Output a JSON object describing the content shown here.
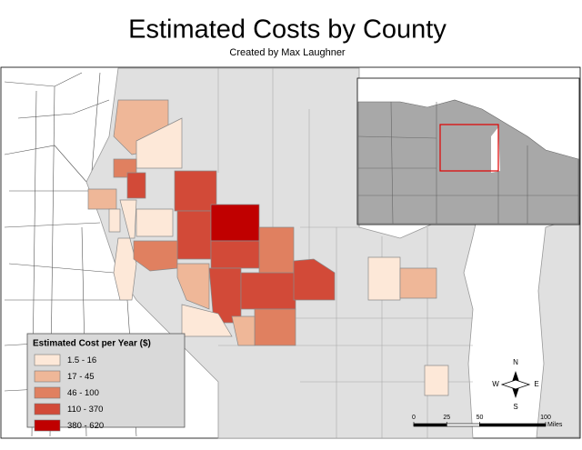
{
  "title": "Estimated Costs by County",
  "subtitle": "Created by Max Laughner",
  "legend": {
    "title": "Estimated Cost per Year ($)",
    "items": [
      {
        "label": "1.5 - 16",
        "color": "#fde8d8"
      },
      {
        "label": "17 - 45",
        "color": "#efb798"
      },
      {
        "label": "46 - 100",
        "color": "#e08060"
      },
      {
        "label": "110 - 370",
        "color": "#d24a38"
      },
      {
        "label": "380 - 620",
        "color": "#c00000"
      }
    ]
  },
  "scale": {
    "ticks": [
      0,
      25,
      50,
      100
    ],
    "unit": "Miles"
  },
  "compass": {
    "n": "N",
    "e": "E",
    "s": "S",
    "w": "W"
  }
}
